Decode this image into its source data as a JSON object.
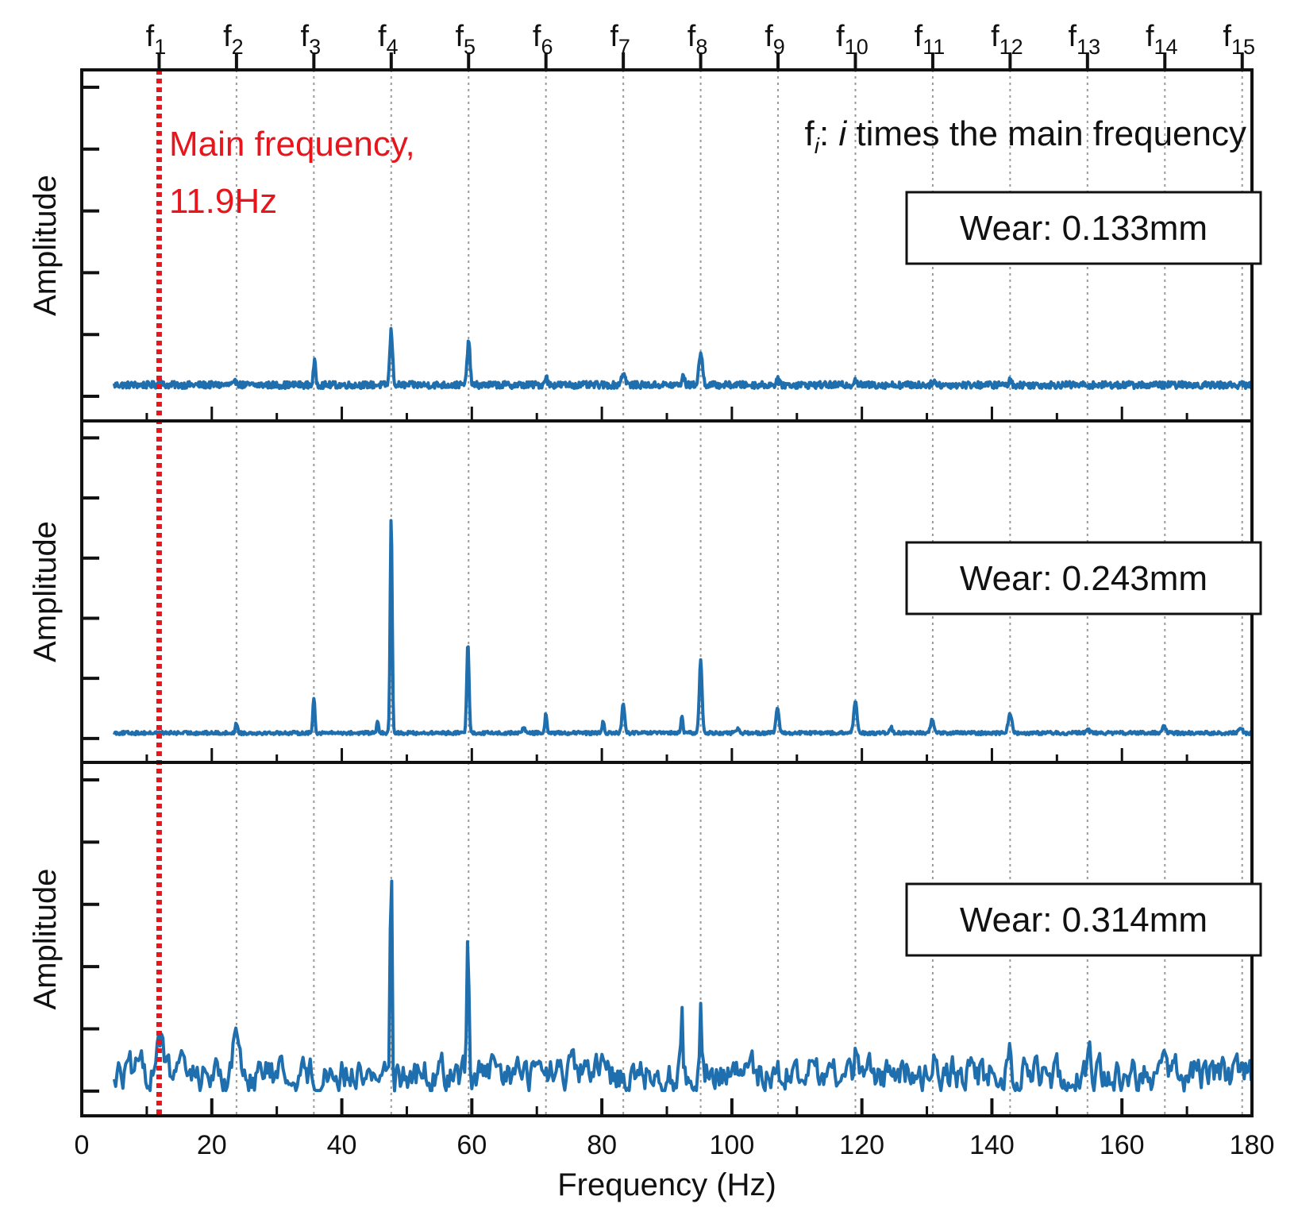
{
  "chart_data": {
    "type": "line",
    "xlabel": "Frequency (Hz)",
    "ylabel": "Amplitude",
    "xlim": [
      0,
      180
    ],
    "x_ticks": [
      0,
      20,
      40,
      60,
      80,
      100,
      120,
      140,
      160,
      180
    ],
    "x_range_data": [
      5,
      180
    ],
    "grid": "dotted vertical lines at harmonics",
    "main_frequency_hz": 11.9,
    "main_frequency_annotation": [
      "Main frequency,",
      "11.9Hz"
    ],
    "harmonic_note": {
      "prefix": "f",
      "sub": "i",
      "suffix": ": ",
      "italic": "i",
      "rest": " times the main frequency"
    },
    "harmonics": [
      {
        "label": "f",
        "sub": "1",
        "hz": 11.9
      },
      {
        "label": "f",
        "sub": "2",
        "hz": 23.8
      },
      {
        "label": "f",
        "sub": "3",
        "hz": 35.7
      },
      {
        "label": "f",
        "sub": "4",
        "hz": 47.6
      },
      {
        "label": "f",
        "sub": "5",
        "hz": 59.5
      },
      {
        "label": "f",
        "sub": "6",
        "hz": 71.4
      },
      {
        "label": "f",
        "sub": "7",
        "hz": 83.3
      },
      {
        "label": "f",
        "sub": "8",
        "hz": 95.2
      },
      {
        "label": "f",
        "sub": "9",
        "hz": 107.1
      },
      {
        "label": "f",
        "sub": "10",
        "hz": 119.0
      },
      {
        "label": "f",
        "sub": "11",
        "hz": 130.9
      },
      {
        "label": "f",
        "sub": "12",
        "hz": 142.8
      },
      {
        "label": "f",
        "sub": "13",
        "hz": 154.7
      },
      {
        "label": "f",
        "sub": "14",
        "hz": 166.6
      },
      {
        "label": "f",
        "sub": "15",
        "hz": 178.5
      }
    ],
    "panels": [
      {
        "wear_label": "Wear: 0.133mm",
        "ylim": [
          0,
          1
        ],
        "baseline": 0.04,
        "noise": 0.012,
        "peaks": [
          [
            12.0,
            0.02,
            0.3
          ],
          [
            23.8,
            0.015,
            0.3
          ],
          [
            35.8,
            0.08,
            0.25
          ],
          [
            47.6,
            0.19,
            0.3
          ],
          [
            59.5,
            0.16,
            0.3
          ],
          [
            71.4,
            0.03,
            0.3
          ],
          [
            83.3,
            0.04,
            0.45
          ],
          [
            92.5,
            0.03,
            0.3
          ],
          [
            95.2,
            0.11,
            0.4
          ],
          [
            107.0,
            0.02,
            0.3
          ],
          [
            119.0,
            0.02,
            0.3
          ],
          [
            131.0,
            0.015,
            0.3
          ],
          [
            142.8,
            0.015,
            0.3
          ]
        ]
      },
      {
        "wear_label": "Wear: 0.243mm",
        "ylim": [
          0,
          1
        ],
        "baseline": 0.02,
        "noise": 0.006,
        "peaks": [
          [
            23.8,
            0.035,
            0.25
          ],
          [
            35.7,
            0.13,
            0.22
          ],
          [
            45.5,
            0.04,
            0.2
          ],
          [
            47.6,
            0.78,
            0.22
          ],
          [
            59.4,
            0.33,
            0.25
          ],
          [
            68.0,
            0.02,
            0.3
          ],
          [
            71.4,
            0.07,
            0.22
          ],
          [
            80.2,
            0.04,
            0.22
          ],
          [
            83.3,
            0.11,
            0.28
          ],
          [
            92.3,
            0.06,
            0.22
          ],
          [
            95.2,
            0.26,
            0.3
          ],
          [
            101.0,
            0.015,
            0.3
          ],
          [
            107.0,
            0.09,
            0.32
          ],
          [
            119.0,
            0.11,
            0.35
          ],
          [
            124.5,
            0.02,
            0.25
          ],
          [
            130.8,
            0.05,
            0.35
          ],
          [
            142.8,
            0.07,
            0.4
          ],
          [
            154.7,
            0.015,
            0.35
          ],
          [
            166.5,
            0.025,
            0.35
          ],
          [
            178.3,
            0.02,
            0.35
          ]
        ]
      },
      {
        "wear_label": "Wear: 0.314mm",
        "ylim": [
          0,
          1
        ],
        "baseline": 0.06,
        "noise": 0.055,
        "peaks": [
          [
            11.9,
            0.15,
            0.7
          ],
          [
            23.8,
            0.12,
            0.8
          ],
          [
            47.6,
            0.84,
            0.2
          ],
          [
            59.4,
            0.46,
            0.22
          ],
          [
            92.3,
            0.23,
            0.2
          ],
          [
            95.2,
            0.24,
            0.22
          ],
          [
            107.0,
            0.07,
            0.35
          ],
          [
            119.0,
            0.07,
            0.35
          ],
          [
            131.0,
            0.06,
            0.3
          ],
          [
            142.8,
            0.08,
            0.3
          ],
          [
            155.0,
            0.05,
            0.5
          ]
        ]
      }
    ]
  },
  "colors": {
    "series": "#1f6fae",
    "main_frequency": "#e8161c",
    "grid": "#9a9a9a",
    "axis": "#111111"
  }
}
